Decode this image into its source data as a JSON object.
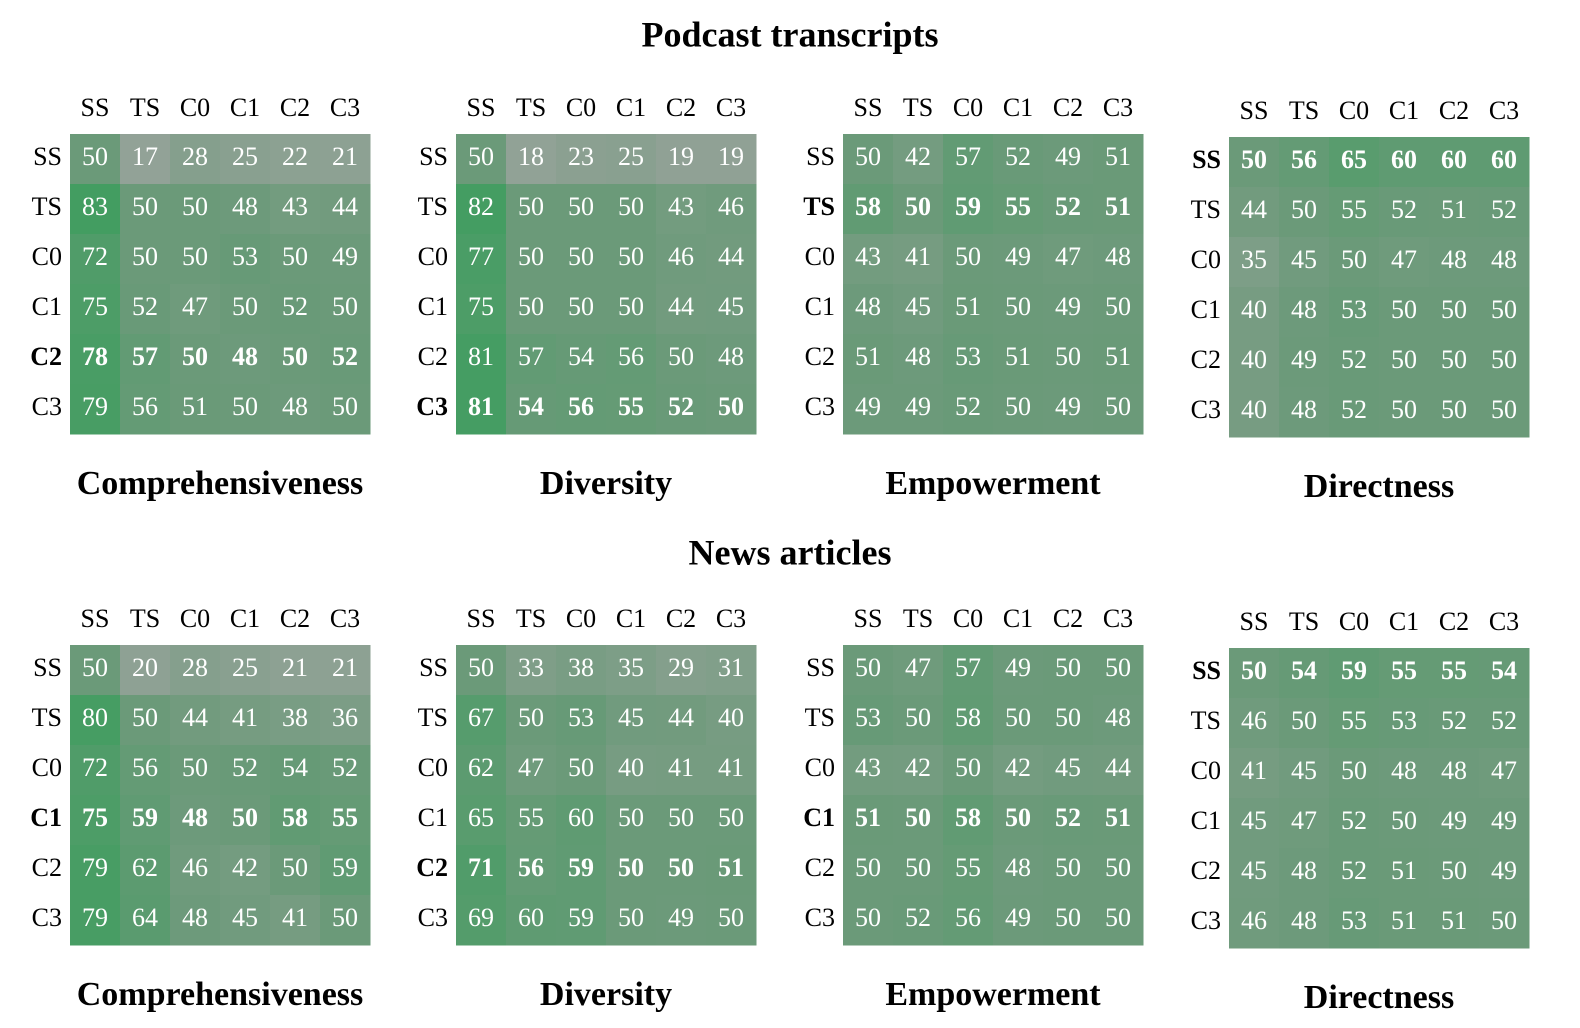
{
  "sections": [
    {
      "title": "Podcast transcripts",
      "chart_data": [
        {
          "type": "heatmap",
          "title": "Comprehensiveness",
          "x_categories": [
            "SS",
            "TS",
            "C0",
            "C1",
            "C2",
            "C3"
          ],
          "y_categories": [
            "SS",
            "TS",
            "C0",
            "C1",
            "C2",
            "C3"
          ],
          "bold_row": 4,
          "vlim": [
            0,
            100
          ],
          "colorscale": [
            "#a6a6a6",
            "#6b9a79",
            "#2e9f55"
          ],
          "values": [
            [
              50,
              17,
              28,
              25,
              22,
              21
            ],
            [
              83,
              50,
              50,
              48,
              43,
              44
            ],
            [
              72,
              50,
              50,
              53,
              50,
              49
            ],
            [
              75,
              52,
              47,
              50,
              52,
              50
            ],
            [
              78,
              57,
              50,
              48,
              50,
              52
            ],
            [
              79,
              56,
              51,
              50,
              48,
              50
            ]
          ]
        },
        {
          "type": "heatmap",
          "title": "Diversity",
          "x_categories": [
            "SS",
            "TS",
            "C0",
            "C1",
            "C2",
            "C3"
          ],
          "y_categories": [
            "SS",
            "TS",
            "C0",
            "C1",
            "C2",
            "C3"
          ],
          "bold_row": 5,
          "vlim": [
            0,
            100
          ],
          "colorscale": [
            "#a6a6a6",
            "#6b9a79",
            "#2e9f55"
          ],
          "values": [
            [
              50,
              18,
              23,
              25,
              19,
              19
            ],
            [
              82,
              50,
              50,
              50,
              43,
              46
            ],
            [
              77,
              50,
              50,
              50,
              46,
              44
            ],
            [
              75,
              50,
              50,
              50,
              44,
              45
            ],
            [
              81,
              57,
              54,
              56,
              50,
              48
            ],
            [
              81,
              54,
              56,
              55,
              52,
              50
            ]
          ]
        },
        {
          "type": "heatmap",
          "title": "Empowerment",
          "x_categories": [
            "SS",
            "TS",
            "C0",
            "C1",
            "C2",
            "C3"
          ],
          "y_categories": [
            "SS",
            "TS",
            "C0",
            "C1",
            "C2",
            "C3"
          ],
          "bold_row": 1,
          "vlim": [
            0,
            100
          ],
          "colorscale": [
            "#a6a6a6",
            "#6b9a79",
            "#2e9f55"
          ],
          "values": [
            [
              50,
              42,
              57,
              52,
              49,
              51
            ],
            [
              58,
              50,
              59,
              55,
              52,
              51
            ],
            [
              43,
              41,
              50,
              49,
              47,
              48
            ],
            [
              48,
              45,
              51,
              50,
              49,
              50
            ],
            [
              51,
              48,
              53,
              51,
              50,
              51
            ],
            [
              49,
              49,
              52,
              50,
              49,
              50
            ]
          ]
        },
        {
          "type": "heatmap",
          "title": "Directness",
          "x_categories": [
            "SS",
            "TS",
            "C0",
            "C1",
            "C2",
            "C3"
          ],
          "y_categories": [
            "SS",
            "TS",
            "C0",
            "C1",
            "C2",
            "C3"
          ],
          "bold_row": 0,
          "vlim": [
            0,
            100
          ],
          "colorscale": [
            "#a6a6a6",
            "#6b9a79",
            "#2e9f55"
          ],
          "values": [
            [
              50,
              56,
              65,
              60,
              60,
              60
            ],
            [
              44,
              50,
              55,
              52,
              51,
              52
            ],
            [
              35,
              45,
              50,
              47,
              48,
              48
            ],
            [
              40,
              48,
              53,
              50,
              50,
              50
            ],
            [
              40,
              49,
              52,
              50,
              50,
              50
            ],
            [
              40,
              48,
              52,
              50,
              50,
              50
            ]
          ]
        }
      ]
    },
    {
      "title": "News articles",
      "chart_data": [
        {
          "type": "heatmap",
          "title": "Comprehensiveness",
          "x_categories": [
            "SS",
            "TS",
            "C0",
            "C1",
            "C2",
            "C3"
          ],
          "y_categories": [
            "SS",
            "TS",
            "C0",
            "C1",
            "C2",
            "C3"
          ],
          "bold_row": 3,
          "vlim": [
            0,
            100
          ],
          "colorscale": [
            "#a6a6a6",
            "#6b9a79",
            "#2e9f55"
          ],
          "values": [
            [
              50,
              20,
              28,
              25,
              21,
              21
            ],
            [
              80,
              50,
              44,
              41,
              38,
              36
            ],
            [
              72,
              56,
              50,
              52,
              54,
              52
            ],
            [
              75,
              59,
              48,
              50,
              58,
              55
            ],
            [
              79,
              62,
              46,
              42,
              50,
              59
            ],
            [
              79,
              64,
              48,
              45,
              41,
              50
            ]
          ]
        },
        {
          "type": "heatmap",
          "title": "Diversity",
          "x_categories": [
            "SS",
            "TS",
            "C0",
            "C1",
            "C2",
            "C3"
          ],
          "y_categories": [
            "SS",
            "TS",
            "C0",
            "C1",
            "C2",
            "C3"
          ],
          "bold_row": 4,
          "vlim": [
            0,
            100
          ],
          "colorscale": [
            "#a6a6a6",
            "#6b9a79",
            "#2e9f55"
          ],
          "values": [
            [
              50,
              33,
              38,
              35,
              29,
              31
            ],
            [
              67,
              50,
              53,
              45,
              44,
              40
            ],
            [
              62,
              47,
              50,
              40,
              41,
              41
            ],
            [
              65,
              55,
              60,
              50,
              50,
              50
            ],
            [
              71,
              56,
              59,
              50,
              50,
              51
            ],
            [
              69,
              60,
              59,
              50,
              49,
              50
            ]
          ]
        },
        {
          "type": "heatmap",
          "title": "Empowerment",
          "x_categories": [
            "SS",
            "TS",
            "C0",
            "C1",
            "C2",
            "C3"
          ],
          "y_categories": [
            "SS",
            "TS",
            "C0",
            "C1",
            "C2",
            "C3"
          ],
          "bold_row": 3,
          "vlim": [
            0,
            100
          ],
          "colorscale": [
            "#a6a6a6",
            "#6b9a79",
            "#2e9f55"
          ],
          "values": [
            [
              50,
              47,
              57,
              49,
              50,
              50
            ],
            [
              53,
              50,
              58,
              50,
              50,
              48
            ],
            [
              43,
              42,
              50,
              42,
              45,
              44
            ],
            [
              51,
              50,
              58,
              50,
              52,
              51
            ],
            [
              50,
              50,
              55,
              48,
              50,
              50
            ],
            [
              50,
              52,
              56,
              49,
              50,
              50
            ]
          ]
        },
        {
          "type": "heatmap",
          "title": "Directness",
          "x_categories": [
            "SS",
            "TS",
            "C0",
            "C1",
            "C2",
            "C3"
          ],
          "y_categories": [
            "SS",
            "TS",
            "C0",
            "C1",
            "C2",
            "C3"
          ],
          "bold_row": 0,
          "vlim": [
            0,
            100
          ],
          "colorscale": [
            "#a6a6a6",
            "#6b9a79",
            "#2e9f55"
          ],
          "values": [
            [
              50,
              54,
              59,
              55,
              55,
              54
            ],
            [
              46,
              50,
              55,
              53,
              52,
              52
            ],
            [
              41,
              45,
              50,
              48,
              48,
              47
            ],
            [
              45,
              47,
              52,
              50,
              49,
              49
            ],
            [
              45,
              48,
              52,
              51,
              50,
              49
            ],
            [
              46,
              48,
              53,
              51,
              51,
              50
            ]
          ]
        }
      ]
    }
  ]
}
